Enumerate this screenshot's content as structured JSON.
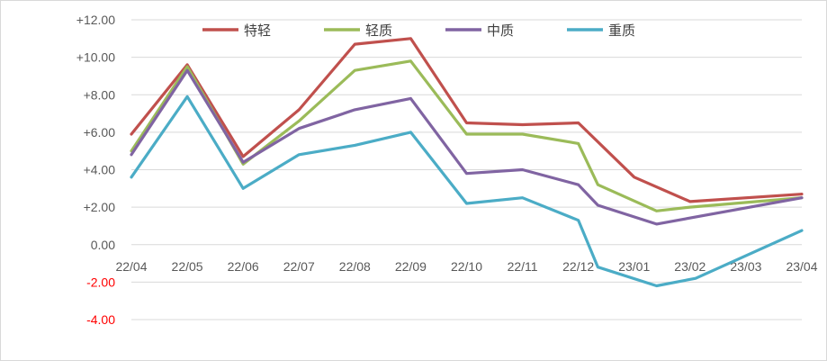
{
  "chart_data": {
    "type": "line",
    "title": "",
    "xlabel": "",
    "ylabel": "",
    "categories": [
      "22/04",
      "22/05",
      "22/06",
      "22/07",
      "22/08",
      "22/09",
      "22/10",
      "22/11",
      "22/12",
      "23/01",
      "23/02",
      "23/03",
      "23/04"
    ],
    "ylim": [
      -4,
      12
    ],
    "ytick_labels": [
      "+12.00",
      "+10.00",
      "+8.00",
      "+6.00",
      "+4.00",
      "+2.00",
      "0.00",
      "-2.00",
      "-4.00"
    ],
    "ytick_values": [
      12,
      10,
      8,
      6,
      4,
      2,
      0,
      -2,
      -4
    ],
    "negative_tick_color": "#ff0000",
    "positive_tick_color": "#595959",
    "grid": "horizontal",
    "legend_position": "top",
    "series": [
      {
        "name": "特轻",
        "color": "#c0504d",
        "points": [
          [
            0,
            5.9
          ],
          [
            1,
            9.6
          ],
          [
            2,
            4.7
          ],
          [
            3,
            7.2
          ],
          [
            4,
            10.7
          ],
          [
            5,
            11.0
          ],
          [
            6,
            6.5
          ],
          [
            7,
            6.4
          ],
          [
            8,
            6.5
          ],
          [
            9,
            3.6
          ],
          [
            10,
            2.3
          ],
          [
            12,
            2.7
          ]
        ]
      },
      {
        "name": "轻质",
        "color": "#9bbb59",
        "points": [
          [
            0,
            5.0
          ],
          [
            1,
            9.5
          ],
          [
            2,
            4.3
          ],
          [
            3,
            6.6
          ],
          [
            4,
            9.3
          ],
          [
            5,
            9.8
          ],
          [
            6,
            5.9
          ],
          [
            7,
            5.9
          ],
          [
            8,
            5.4
          ],
          [
            8.35,
            3.2
          ],
          [
            9.4,
            1.8
          ],
          [
            10,
            2.0
          ],
          [
            12,
            2.5
          ]
        ]
      },
      {
        "name": "中质",
        "color": "#8064a2",
        "points": [
          [
            0,
            4.8
          ],
          [
            1,
            9.3
          ],
          [
            2,
            4.4
          ],
          [
            3,
            6.2
          ],
          [
            4,
            7.2
          ],
          [
            5,
            7.8
          ],
          [
            6,
            3.8
          ],
          [
            7,
            4.0
          ],
          [
            8,
            3.2
          ],
          [
            8.35,
            2.1
          ],
          [
            9.4,
            1.1
          ],
          [
            12,
            2.5
          ]
        ]
      },
      {
        "name": "重质",
        "color": "#4bacc6",
        "points": [
          [
            0,
            3.6
          ],
          [
            1,
            7.9
          ],
          [
            2,
            3.0
          ],
          [
            3,
            4.8
          ],
          [
            4,
            5.3
          ],
          [
            5,
            6.0
          ],
          [
            6,
            2.2
          ],
          [
            7,
            2.5
          ],
          [
            8,
            1.3
          ],
          [
            8.35,
            -1.2
          ],
          [
            9.4,
            -2.2
          ],
          [
            10.1,
            -1.8
          ],
          [
            12,
            0.75
          ]
        ]
      }
    ]
  }
}
